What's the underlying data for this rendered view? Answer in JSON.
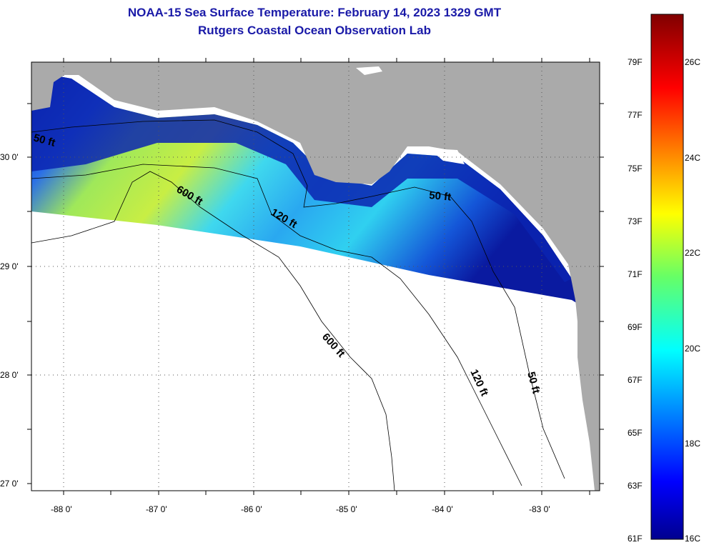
{
  "title": {
    "line1": "NOAA-15 Sea Surface Temperature:  February 14, 2023 1329 GMT",
    "line2": "Rutgers Coastal Ocean Observation Lab"
  },
  "colors": {
    "land": "#aaaaaa",
    "no_data": "#ffffff",
    "title_text": "#1a1aa8"
  },
  "map": {
    "lat_labels": [
      "30 0'",
      "29 0'",
      "28 0'",
      "27 0'"
    ],
    "lon_labels": [
      "-88 0'",
      "-87 0'",
      "-86 0'",
      "-85 0'",
      "-84 0'",
      "-83 0'"
    ],
    "contour_labels": {
      "c50a": "50 ft",
      "c600a": "600 ft",
      "c120a": "120 ft",
      "c50b": "50 ft",
      "c600b": "600 ft",
      "c120b": "120 ft",
      "c50c": "50 ft"
    }
  },
  "colorbar": {
    "fahrenheit_labels": [
      "79F",
      "77F",
      "75F",
      "73F",
      "71F",
      "69F",
      "67F",
      "65F",
      "63F",
      "61F"
    ],
    "celsius_labels": [
      "26C",
      "24C",
      "22C",
      "20C",
      "18C",
      "16C"
    ],
    "range_c": [
      16,
      27
    ],
    "colormap": "jet"
  }
}
